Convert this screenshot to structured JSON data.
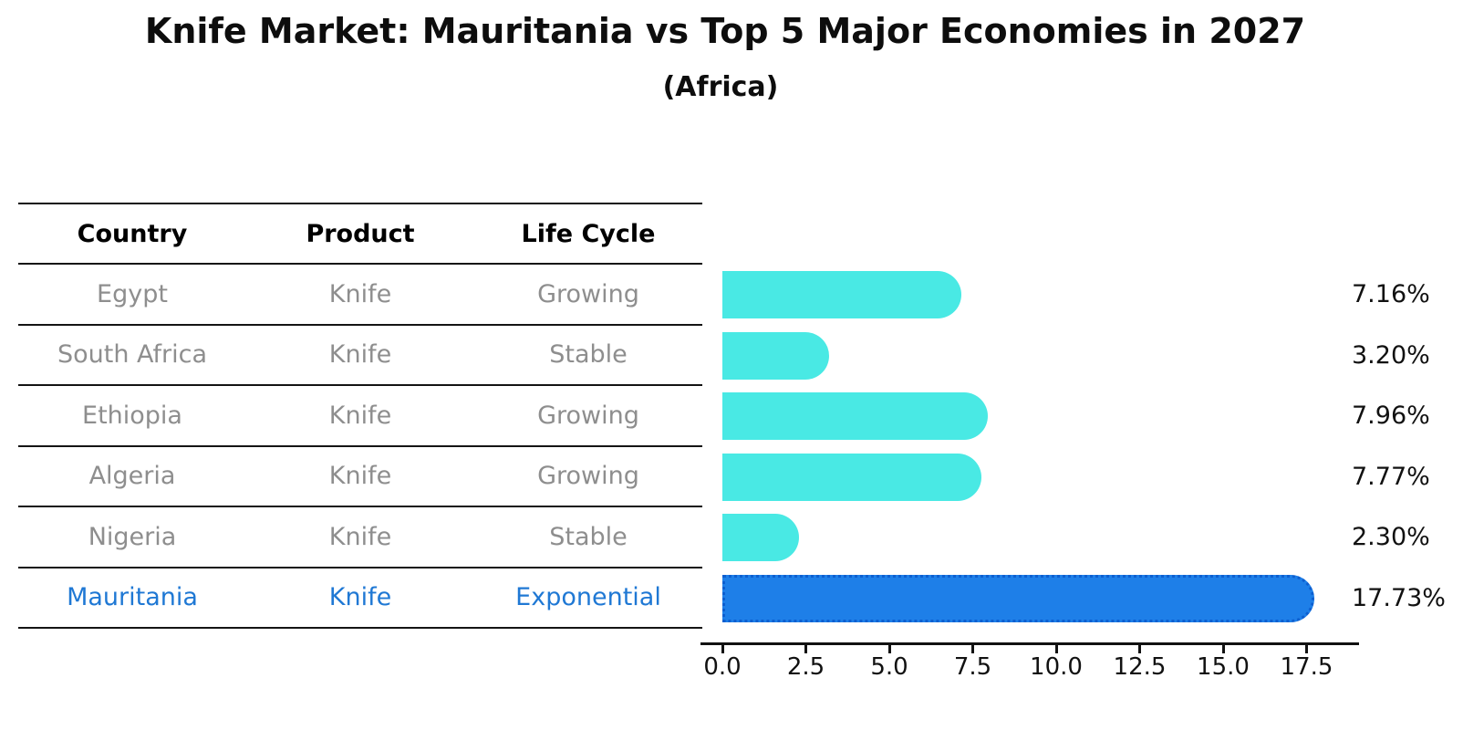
{
  "title": "Knife Market: Mauritania vs Top 5 Major Economies in 2027",
  "subtitle": "(Africa)",
  "table": {
    "headers": [
      "Country",
      "Product",
      "Life Cycle"
    ],
    "rows": [
      {
        "country": "Egypt",
        "product": "Knife",
        "life_cycle": "Growing",
        "value_label": "7.16%",
        "highlight": false
      },
      {
        "country": "South Africa",
        "product": "Knife",
        "life_cycle": "Stable",
        "value_label": "3.20%",
        "highlight": false
      },
      {
        "country": "Ethiopia",
        "product": "Knife",
        "life_cycle": "Growing",
        "value_label": "7.96%",
        "highlight": false
      },
      {
        "country": "Algeria",
        "product": "Knife",
        "life_cycle": "Growing",
        "value_label": "7.77%",
        "highlight": false
      },
      {
        "country": "Nigeria",
        "product": "Knife",
        "life_cycle": "Stable",
        "value_label": "2.30%",
        "highlight": false
      },
      {
        "country": "Mauritania",
        "product": "Knife",
        "life_cycle": "Exponential",
        "value_label": "17.73%",
        "highlight": true
      }
    ]
  },
  "chart_data": {
    "type": "bar",
    "orientation": "horizontal",
    "title": "Knife Market: Mauritania vs Top 5 Major Economies in 2027 (Africa)",
    "categories": [
      "Egypt",
      "South Africa",
      "Ethiopia",
      "Algeria",
      "Nigeria",
      "Mauritania"
    ],
    "values": [
      7.16,
      3.2,
      7.96,
      7.77,
      2.3,
      17.73
    ],
    "value_labels": [
      "7.16%",
      "3.20%",
      "7.96%",
      "7.77%",
      "2.30%",
      "17.73%"
    ],
    "unit": "percent",
    "x_ticks": [
      "0.0",
      "2.5",
      "5.0",
      "7.5",
      "10.0",
      "12.5",
      "15.0",
      "17.5"
    ],
    "x_tick_values": [
      0,
      2.5,
      5,
      7.5,
      10,
      12.5,
      15,
      17.5
    ],
    "xlim": [
      0,
      18.6
    ],
    "grid": false,
    "legend": "none",
    "highlight_index": 5,
    "bar_color": "#49e9e4",
    "highlight_bar_color": "#1e7fe8",
    "highlight_edge_color": "#0d5fd0",
    "highlight_text_color": "#1f78d4",
    "row_text_color": "#8e8e8e",
    "header_text_color": "#000000",
    "label_text_color": "#111111"
  }
}
